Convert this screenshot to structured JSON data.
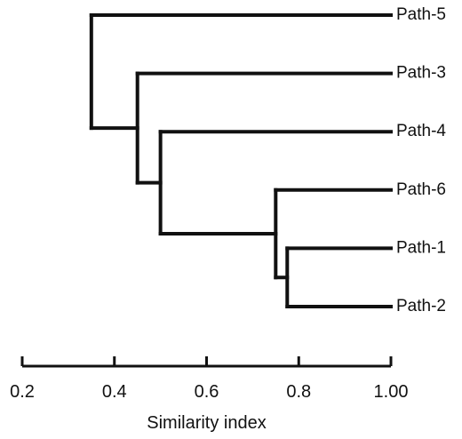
{
  "dendrogram": {
    "leaves": [
      "Path-5",
      "Path-3",
      "Path-4",
      "Path-6",
      "Path-1",
      "Path-2"
    ],
    "merges": [
      {
        "id": "m12",
        "children": [
          "Path-1",
          "Path-2"
        ],
        "height": 0.775
      },
      {
        "id": "m612",
        "children": [
          "Path-6",
          "m12"
        ],
        "height": 0.75
      },
      {
        "id": "m4612",
        "children": [
          "Path-4",
          "m612"
        ],
        "height": 0.5
      },
      {
        "id": "m34612",
        "children": [
          "Path-3",
          "m4612"
        ],
        "height": 0.45
      },
      {
        "id": "root",
        "children": [
          "Path-5",
          "m34612"
        ],
        "height": 0.35
      }
    ],
    "leaf_position": 1.0
  },
  "axis": {
    "min": 0.2,
    "max": 1.0,
    "ticks": [
      0.2,
      0.4,
      0.6,
      0.8,
      1.0
    ],
    "tick_labels": [
      "0.2",
      "0.4",
      "0.6",
      "0.8",
      "1.00"
    ],
    "title": "Similarity index"
  },
  "colors": {
    "line": "#111111",
    "background": "#ffffff"
  }
}
